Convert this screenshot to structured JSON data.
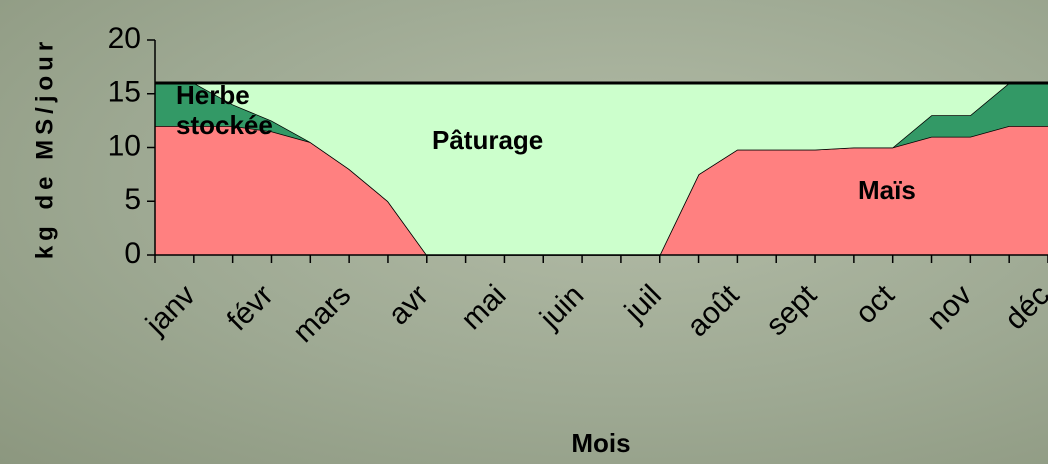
{
  "chart_data": {
    "type": "stacked_area",
    "x_label": "Mois",
    "y_label": "kg de MS/jour",
    "categories": [
      "janv",
      null,
      "févr",
      null,
      "mars",
      null,
      "avr",
      null,
      "mai",
      null,
      "juin",
      null,
      "juil",
      null,
      "août",
      null,
      "sept",
      null,
      "oct",
      null,
      "nov",
      null,
      "déc",
      null
    ],
    "series": [
      {
        "name": "Maïs",
        "color": "#ff8080",
        "values": [
          12,
          12,
          12,
          11.5,
          10.5,
          8,
          5,
          0,
          0,
          0,
          0,
          0,
          0,
          0,
          7.5,
          9.8,
          9.8,
          9.8,
          10,
          10,
          11,
          11,
          12,
          12
        ]
      },
      {
        "name": "Herbe stockée",
        "color": "#339966",
        "values": [
          4,
          4,
          2,
          1,
          0,
          0,
          0,
          0,
          0,
          0,
          0,
          0,
          0,
          0,
          0,
          0,
          0,
          0,
          0,
          0,
          2,
          2,
          4,
          4
        ]
      },
      {
        "name": "Pâturage",
        "color": "#ccffcc",
        "values": [
          0,
          0,
          2,
          3.5,
          5.5,
          8,
          11,
          16,
          16,
          16,
          16,
          16,
          16,
          16,
          8.5,
          6.2,
          6.2,
          6.2,
          6,
          6,
          3,
          3,
          0,
          0
        ]
      }
    ],
    "ylim": [
      0,
      20
    ],
    "yticks": [
      0,
      5,
      10,
      15,
      20
    ]
  }
}
